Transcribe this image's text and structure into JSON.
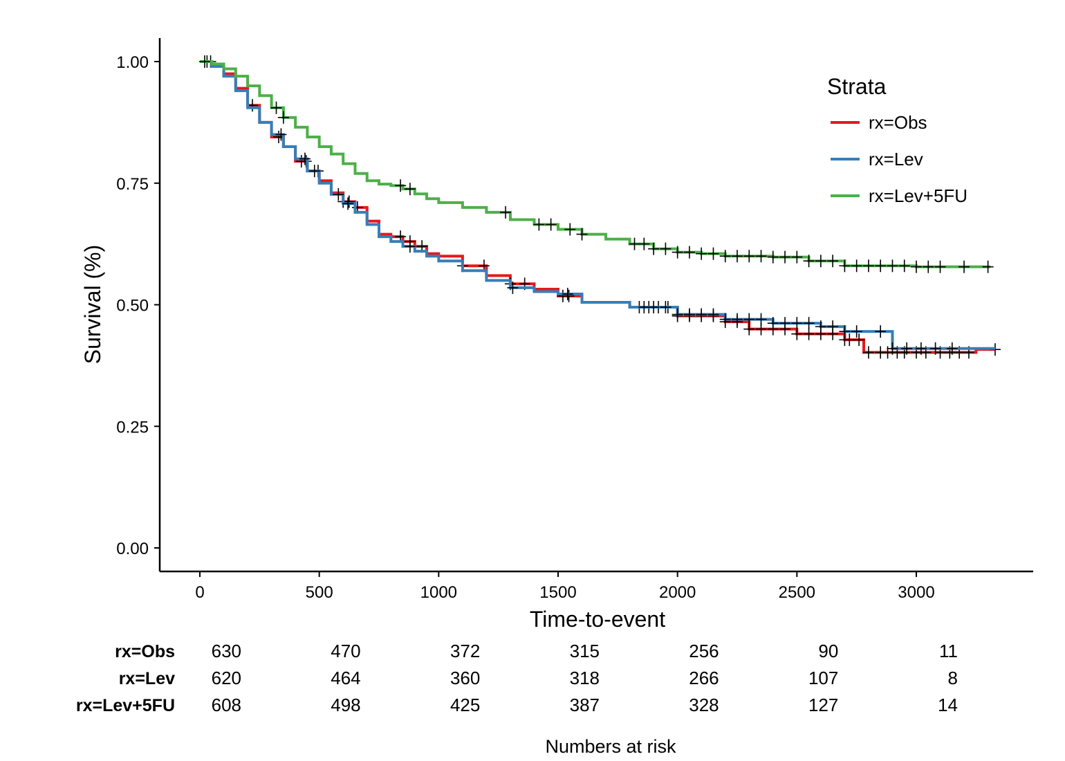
{
  "chart_data": {
    "type": "line",
    "subtype": "kaplan-meier",
    "xlabel": "Time-to-event",
    "ylabel": "Survival (%)",
    "xlim": [
      -160,
      3510
    ],
    "ylim": [
      -0.05,
      1.05
    ],
    "x_ticks": [
      0,
      500,
      1000,
      1500,
      2000,
      2500,
      3000
    ],
    "y_ticks": [
      0,
      0.25,
      0.5,
      0.75,
      1
    ],
    "y_tick_labels": [
      "0.00",
      "0.25",
      "0.50",
      "0.75",
      "1.00"
    ],
    "legend": {
      "title": "Strata",
      "position": "top-right",
      "entries": [
        "rx=Obs",
        "rx=Lev",
        "rx=Lev+5FU"
      ]
    },
    "series": [
      {
        "name": "rx=Obs",
        "color": "#e41a1c",
        "points": [
          [
            0,
            1.0
          ],
          [
            50,
            0.99
          ],
          [
            100,
            0.975
          ],
          [
            150,
            0.945
          ],
          [
            200,
            0.91
          ],
          [
            250,
            0.875
          ],
          [
            300,
            0.845
          ],
          [
            350,
            0.825
          ],
          [
            400,
            0.795
          ],
          [
            450,
            0.775
          ],
          [
            500,
            0.755
          ],
          [
            550,
            0.73
          ],
          [
            600,
            0.712
          ],
          [
            650,
            0.7
          ],
          [
            700,
            0.672
          ],
          [
            750,
            0.645
          ],
          [
            800,
            0.64
          ],
          [
            850,
            0.63
          ],
          [
            900,
            0.62
          ],
          [
            950,
            0.605
          ],
          [
            1000,
            0.6
          ],
          [
            1100,
            0.58
          ],
          [
            1200,
            0.56
          ],
          [
            1300,
            0.543
          ],
          [
            1400,
            0.532
          ],
          [
            1500,
            0.518
          ],
          [
            1600,
            0.505
          ],
          [
            1800,
            0.495
          ],
          [
            2000,
            0.477
          ],
          [
            2200,
            0.465
          ],
          [
            2300,
            0.45
          ],
          [
            2500,
            0.44
          ],
          [
            2700,
            0.428
          ],
          [
            2780,
            0.402
          ],
          [
            3200,
            0.402
          ],
          [
            3250,
            0.408
          ],
          [
            3330,
            0.408
          ]
        ],
        "censor_x": [
          45,
          220,
          330,
          425,
          445,
          495,
          600,
          625,
          660,
          840,
          880,
          930,
          1100,
          1190,
          1300,
          1360,
          1520,
          1545,
          1840,
          1880,
          1920,
          1960,
          2000,
          2050,
          2100,
          2150,
          2200,
          2250,
          2300,
          2350,
          2400,
          2450,
          2500,
          2550,
          2600,
          2650,
          2700,
          2720,
          2760,
          2800,
          2850,
          2880,
          2920,
          2950,
          3000,
          3040,
          3100,
          3140,
          3180,
          3220,
          3330
        ]
      },
      {
        "name": "rx=Lev",
        "color": "#377eb8",
        "points": [
          [
            0,
            1.0
          ],
          [
            50,
            0.99
          ],
          [
            100,
            0.97
          ],
          [
            150,
            0.94
          ],
          [
            200,
            0.905
          ],
          [
            250,
            0.875
          ],
          [
            300,
            0.85
          ],
          [
            350,
            0.825
          ],
          [
            400,
            0.8
          ],
          [
            450,
            0.775
          ],
          [
            500,
            0.75
          ],
          [
            550,
            0.727
          ],
          [
            600,
            0.708
          ],
          [
            650,
            0.69
          ],
          [
            700,
            0.665
          ],
          [
            750,
            0.64
          ],
          [
            800,
            0.63
          ],
          [
            850,
            0.62
          ],
          [
            900,
            0.61
          ],
          [
            950,
            0.6
          ],
          [
            1000,
            0.59
          ],
          [
            1100,
            0.57
          ],
          [
            1200,
            0.55
          ],
          [
            1300,
            0.535
          ],
          [
            1400,
            0.527
          ],
          [
            1500,
            0.522
          ],
          [
            1600,
            0.505
          ],
          [
            1800,
            0.495
          ],
          [
            2000,
            0.48
          ],
          [
            2200,
            0.47
          ],
          [
            2400,
            0.462
          ],
          [
            2600,
            0.455
          ],
          [
            2700,
            0.445
          ],
          [
            2900,
            0.435
          ],
          [
            2900,
            0.41
          ],
          [
            3330,
            0.41
          ]
        ],
        "censor_x": [
          30,
          340,
          440,
          480,
          580,
          620,
          880,
          1310,
          1540,
          1860,
          1900,
          1950,
          2000,
          2050,
          2100,
          2150,
          2200,
          2250,
          2300,
          2350,
          2400,
          2450,
          2500,
          2550,
          2600,
          2650,
          2700,
          2750,
          2850,
          2900,
          2960,
          3020,
          3080,
          3150
        ]
      },
      {
        "name": "rx=Lev+5FU",
        "color": "#4daf4a",
        "points": [
          [
            0,
            1.0
          ],
          [
            50,
            0.995
          ],
          [
            100,
            0.985
          ],
          [
            150,
            0.97
          ],
          [
            200,
            0.95
          ],
          [
            250,
            0.93
          ],
          [
            300,
            0.905
          ],
          [
            350,
            0.885
          ],
          [
            400,
            0.865
          ],
          [
            450,
            0.845
          ],
          [
            500,
            0.825
          ],
          [
            550,
            0.81
          ],
          [
            600,
            0.79
          ],
          [
            650,
            0.77
          ],
          [
            700,
            0.755
          ],
          [
            750,
            0.748
          ],
          [
            800,
            0.745
          ],
          [
            850,
            0.738
          ],
          [
            900,
            0.728
          ],
          [
            950,
            0.718
          ],
          [
            1000,
            0.71
          ],
          [
            1100,
            0.7
          ],
          [
            1200,
            0.69
          ],
          [
            1300,
            0.675
          ],
          [
            1400,
            0.665
          ],
          [
            1500,
            0.655
          ],
          [
            1600,
            0.645
          ],
          [
            1700,
            0.635
          ],
          [
            1800,
            0.625
          ],
          [
            1900,
            0.615
          ],
          [
            2000,
            0.608
          ],
          [
            2100,
            0.605
          ],
          [
            2200,
            0.6
          ],
          [
            2400,
            0.598
          ],
          [
            2550,
            0.59
          ],
          [
            2700,
            0.58
          ],
          [
            3000,
            0.578
          ],
          [
            3310,
            0.578
          ]
        ],
        "censor_x": [
          20,
          320,
          350,
          840,
          880,
          1280,
          1420,
          1470,
          1550,
          1600,
          1820,
          1860,
          1900,
          1950,
          2000,
          2050,
          2100,
          2150,
          2200,
          2250,
          2300,
          2350,
          2400,
          2450,
          2500,
          2550,
          2600,
          2650,
          2700,
          2750,
          2800,
          2850,
          2900,
          2950,
          3000,
          3050,
          3100,
          3200,
          3300
        ]
      }
    ],
    "risk_table": {
      "title": "Numbers at risk",
      "times": [
        0,
        500,
        1000,
        1500,
        2000,
        2500,
        3000
      ],
      "rows": [
        {
          "name": "rx=Obs",
          "values": [
            "630",
            "470",
            "372",
            "315",
            "256",
            "90",
            "11"
          ]
        },
        {
          "name": "rx=Lev",
          "values": [
            "620",
            "464",
            "360",
            "318",
            "266",
            "107",
            "8"
          ]
        },
        {
          "name": "rx=Lev+5FU",
          "values": [
            "608",
            "498",
            "425",
            "387",
            "328",
            "127",
            "14"
          ]
        }
      ]
    }
  }
}
